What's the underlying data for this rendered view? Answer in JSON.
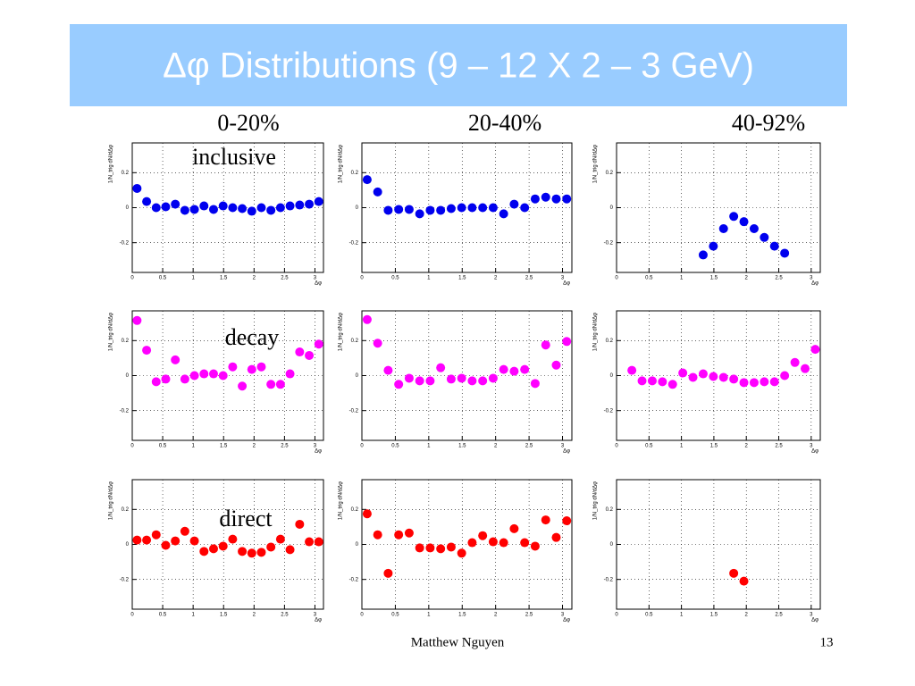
{
  "slide": {
    "title": "Δφ Distributions (9 – 12 X 2 – 3 GeV)",
    "columns": [
      "0-20%",
      "20-40%",
      "40-92%"
    ],
    "rows": [
      "inclusive",
      "decay",
      "direct"
    ],
    "footer": "Matthew Nguyen",
    "page": "13"
  },
  "chart_data": [
    {
      "type": "scatter",
      "color": "#0000ee",
      "xlabel": "Δφ",
      "ylabel": "1/N_trig dN/dΔφ",
      "grid": true,
      "xlim": [
        0,
        3.14
      ],
      "xticks": [
        0,
        0.5,
        1,
        1.5,
        2,
        2.5,
        3
      ],
      "ylim": [
        -0.37,
        0.37
      ],
      "yticks": [
        -0.2,
        0,
        0.2
      ],
      "x": [
        0.079,
        0.236,
        0.393,
        0.55,
        0.707,
        0.864,
        1.021,
        1.178,
        1.335,
        1.492,
        1.649,
        1.806,
        1.963,
        2.12,
        2.277,
        2.434,
        2.591,
        2.749,
        2.906,
        3.063
      ],
      "values": [
        0.11,
        0.035,
        0,
        0.005,
        0.02,
        -0.015,
        -0.01,
        0.01,
        -0.01,
        0.01,
        0,
        -0.005,
        -0.02,
        0,
        -0.015,
        0,
        0.01,
        0.015,
        0.02,
        0.035
      ]
    },
    {
      "type": "scatter",
      "color": "#0000ee",
      "xlabel": "Δφ",
      "ylabel": "1/N_trig dN/dΔφ",
      "grid": true,
      "xlim": [
        0,
        3.14
      ],
      "xticks": [
        0,
        0.5,
        1,
        1.5,
        2,
        2.5,
        3
      ],
      "ylim": [
        -0.37,
        0.37
      ],
      "yticks": [
        -0.2,
        0,
        0.2
      ],
      "x": [
        0.079,
        0.236,
        0.393,
        0.55,
        0.707,
        0.864,
        1.021,
        1.178,
        1.335,
        1.492,
        1.649,
        1.806,
        1.963,
        2.12,
        2.277,
        2.434,
        2.591,
        2.749,
        2.906,
        3.063
      ],
      "values": [
        0.16,
        0.09,
        -0.015,
        -0.01,
        -0.01,
        -0.035,
        -0.015,
        -0.015,
        -0.005,
        0,
        0,
        0,
        0,
        -0.035,
        0.02,
        0,
        0.05,
        0.06,
        0.05,
        0.05
      ]
    },
    {
      "type": "scatter",
      "color": "#0000ee",
      "xlabel": "Δφ",
      "ylabel": "1/N_trig dN/dΔφ",
      "grid": true,
      "xlim": [
        0,
        3.14
      ],
      "xticks": [
        0,
        0.5,
        1,
        1.5,
        2,
        2.5,
        3
      ],
      "ylim": [
        -0.37,
        0.37
      ],
      "yticks": [
        -0.2,
        0,
        0.2
      ],
      "x": [
        0.079,
        0.236,
        0.393,
        0.55,
        0.707,
        0.864,
        1.021,
        1.178,
        1.335,
        1.492,
        1.649,
        1.806,
        1.963,
        2.12,
        2.277,
        2.434,
        2.591,
        2.749,
        2.906,
        3.063
      ],
      "values": [
        null,
        null,
        null,
        null,
        null,
        null,
        null,
        null,
        -0.27,
        -0.22,
        -0.12,
        -0.05,
        -0.08,
        -0.12,
        -0.17,
        -0.22,
        -0.26,
        null,
        null,
        null
      ]
    },
    {
      "type": "scatter",
      "color": "#ff00ff",
      "xlabel": "Δφ",
      "ylabel": "1/N_trig dN/dΔφ",
      "grid": true,
      "xlim": [
        0,
        3.14
      ],
      "xticks": [
        0,
        0.5,
        1,
        1.5,
        2,
        2.5,
        3
      ],
      "ylim": [
        -0.37,
        0.37
      ],
      "yticks": [
        -0.2,
        0,
        0.2
      ],
      "x": [
        0.079,
        0.236,
        0.393,
        0.55,
        0.707,
        0.864,
        1.021,
        1.178,
        1.335,
        1.492,
        1.649,
        1.806,
        1.963,
        2.12,
        2.277,
        2.434,
        2.591,
        2.749,
        2.906,
        3.063
      ],
      "values": [
        0.315,
        0.145,
        -0.035,
        -0.02,
        0.09,
        -0.02,
        0,
        0.01,
        0.01,
        0,
        0.05,
        -0.06,
        0.035,
        0.05,
        -0.05,
        -0.05,
        0.01,
        0.135,
        0.115,
        0.18
      ]
    },
    {
      "type": "scatter",
      "color": "#ff00ff",
      "xlabel": "Δφ",
      "ylabel": "1/N_trig dN/dΔφ",
      "grid": true,
      "xlim": [
        0,
        3.14
      ],
      "xticks": [
        0,
        0.5,
        1,
        1.5,
        2,
        2.5,
        3
      ],
      "ylim": [
        -0.37,
        0.37
      ],
      "yticks": [
        -0.2,
        0,
        0.2
      ],
      "x": [
        0.079,
        0.236,
        0.393,
        0.55,
        0.707,
        0.864,
        1.021,
        1.178,
        1.335,
        1.492,
        1.649,
        1.806,
        1.963,
        2.12,
        2.277,
        2.434,
        2.591,
        2.749,
        2.906,
        3.063
      ],
      "values": [
        0.32,
        0.185,
        0.03,
        -0.05,
        -0.015,
        -0.03,
        -0.03,
        0.045,
        -0.02,
        -0.015,
        -0.03,
        -0.03,
        -0.015,
        0.035,
        0.025,
        0.035,
        -0.045,
        0.175,
        0.06,
        0.195
      ]
    },
    {
      "type": "scatter",
      "color": "#ff00ff",
      "xlabel": "Δφ",
      "ylabel": "1/N_trig dN/dΔφ",
      "grid": true,
      "xlim": [
        0,
        3.14
      ],
      "xticks": [
        0,
        0.5,
        1,
        1.5,
        2,
        2.5,
        3
      ],
      "ylim": [
        -0.37,
        0.37
      ],
      "yticks": [
        -0.2,
        0,
        0.2
      ],
      "x": [
        0.079,
        0.236,
        0.393,
        0.55,
        0.707,
        0.864,
        1.021,
        1.178,
        1.335,
        1.492,
        1.649,
        1.806,
        1.963,
        2.12,
        2.277,
        2.434,
        2.591,
        2.749,
        2.906,
        3.063
      ],
      "values": [
        null,
        0.03,
        -0.03,
        -0.03,
        -0.035,
        -0.05,
        0.015,
        -0.01,
        0.01,
        -0.005,
        -0.01,
        -0.02,
        -0.04,
        -0.04,
        -0.035,
        -0.035,
        0,
        0.075,
        0.04,
        0.15
      ]
    },
    {
      "type": "scatter",
      "color": "#ff0000",
      "xlabel": "Δφ",
      "ylabel": "1/N_trig dN/dΔφ",
      "grid": true,
      "xlim": [
        0,
        3.14
      ],
      "xticks": [
        0,
        0.5,
        1,
        1.5,
        2,
        2.5,
        3
      ],
      "ylim": [
        -0.37,
        0.37
      ],
      "yticks": [
        -0.2,
        0,
        0.2
      ],
      "x": [
        0.079,
        0.236,
        0.393,
        0.55,
        0.707,
        0.864,
        1.021,
        1.178,
        1.335,
        1.492,
        1.649,
        1.806,
        1.963,
        2.12,
        2.277,
        2.434,
        2.591,
        2.749,
        2.906,
        3.063
      ],
      "values": [
        0.025,
        0.025,
        0.055,
        -0.005,
        0.02,
        0.075,
        0.02,
        -0.04,
        -0.025,
        -0.01,
        0.03,
        -0.04,
        -0.05,
        -0.045,
        -0.015,
        0.03,
        -0.03,
        0.115,
        0.015,
        0.015
      ]
    },
    {
      "type": "scatter",
      "color": "#ff0000",
      "xlabel": "Δφ",
      "ylabel": "1/N_trig dN/dΔφ",
      "grid": true,
      "xlim": [
        0,
        3.14
      ],
      "xticks": [
        0,
        0.5,
        1,
        1.5,
        2,
        2.5,
        3
      ],
      "ylim": [
        -0.37,
        0.37
      ],
      "yticks": [
        -0.2,
        0,
        0.2
      ],
      "x": [
        0.079,
        0.236,
        0.393,
        0.55,
        0.707,
        0.864,
        1.021,
        1.178,
        1.335,
        1.492,
        1.649,
        1.806,
        1.963,
        2.12,
        2.277,
        2.434,
        2.591,
        2.749,
        2.906,
        3.063
      ],
      "values": [
        0.175,
        0.055,
        -0.165,
        0.055,
        0.065,
        -0.02,
        -0.02,
        -0.025,
        -0.015,
        -0.05,
        0.01,
        0.05,
        0.015,
        0.01,
        0.09,
        0.01,
        -0.01,
        0.14,
        0.04,
        0.135
      ]
    },
    {
      "type": "scatter",
      "color": "#ff0000",
      "xlabel": "Δφ",
      "ylabel": "1/N_trig dN/dΔφ",
      "grid": true,
      "xlim": [
        0,
        3.14
      ],
      "xticks": [
        0,
        0.5,
        1,
        1.5,
        2,
        2.5,
        3
      ],
      "ylim": [
        -0.37,
        0.37
      ],
      "yticks": [
        -0.2,
        0,
        0.2
      ],
      "x": [
        0.079,
        0.236,
        0.393,
        0.55,
        0.707,
        0.864,
        1.021,
        1.178,
        1.335,
        1.492,
        1.649,
        1.806,
        1.963,
        2.12,
        2.277,
        2.434,
        2.591,
        2.749,
        2.906,
        3.063
      ],
      "values": [
        null,
        null,
        null,
        null,
        null,
        null,
        null,
        null,
        null,
        null,
        null,
        -0.165,
        -0.21,
        null,
        null,
        null,
        null,
        null,
        null,
        null
      ]
    }
  ]
}
